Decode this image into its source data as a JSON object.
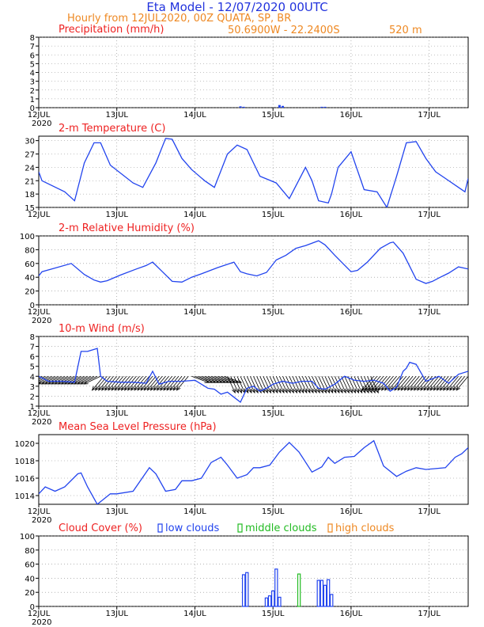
{
  "header": {
    "title": "Eta Model - 12/07/2020 00UTC",
    "subtitle": "Hourly from 12JUL2020, 00Z  QUATA, SP, BR",
    "location": "50.6900W - 22.2400S",
    "elevation": "520  m",
    "title_color": "#2233dd",
    "subtitle_color": "#ee8822"
  },
  "x_axis": {
    "day_labels": [
      "12JUL",
      "13JUL",
      "14JUL",
      "15JUL",
      "16JUL",
      "17JUL"
    ],
    "year_label": "2020",
    "range_hours": [
      0,
      132
    ]
  },
  "colors": {
    "series": "#2244ee",
    "panel_title": "#ee2222",
    "low_clouds": "#2244ee",
    "middle_clouds": "#22bb22",
    "high_clouds": "#ee8822",
    "wind_barbs": "#000000"
  },
  "chart_data": [
    {
      "id": "precip",
      "type": "bar",
      "title": "Precipitation (mm/h)",
      "ylim": [
        0,
        8
      ],
      "yticks": [
        0,
        1,
        2,
        3,
        4,
        5,
        6,
        7,
        8
      ],
      "x": [
        62,
        63,
        74,
        75,
        87,
        88
      ],
      "values": [
        0.15,
        0.1,
        0.3,
        0.2,
        0.1,
        0.1
      ]
    },
    {
      "id": "temp",
      "type": "line",
      "title": "2-m Temperature (C)",
      "ylim": [
        15,
        31
      ],
      "yticks": [
        15,
        18,
        21,
        24,
        27,
        30
      ],
      "x": [
        0,
        1,
        8,
        11,
        14,
        17,
        19,
        22,
        29,
        32,
        36,
        39,
        41,
        44,
        47,
        51,
        54,
        58,
        61,
        64,
        68,
        73,
        77,
        82,
        84,
        86,
        89,
        90,
        92,
        96,
        100,
        104,
        107,
        110,
        113,
        116,
        119,
        122,
        125,
        129,
        131,
        132
      ],
      "values": [
        23,
        21,
        18.5,
        16.5,
        25,
        29.5,
        29.5,
        24.5,
        20.5,
        19.5,
        25,
        30.5,
        30.3,
        26,
        23.5,
        21,
        19.5,
        27,
        29,
        28,
        22,
        20.5,
        17,
        24,
        21,
        16.5,
        16,
        18,
        24,
        27.5,
        19,
        18.5,
        15,
        22,
        29.5,
        29.8,
        26,
        23,
        21.5,
        19.5,
        18.5,
        21.5
      ]
    },
    {
      "id": "rh",
      "type": "line",
      "title": "2-m Relative Humidity (%)",
      "ylim": [
        0,
        100
      ],
      "yticks": [
        0,
        20,
        40,
        60,
        80,
        100
      ],
      "x": [
        0,
        1,
        4,
        10,
        14,
        17,
        19,
        21,
        25,
        30,
        33,
        35,
        38,
        41,
        44,
        47,
        50,
        55,
        60,
        62,
        64,
        67,
        70,
        73,
        76,
        79,
        82,
        86,
        88,
        91,
        96,
        98,
        101,
        105,
        108,
        109,
        112,
        114,
        116,
        119,
        121,
        123,
        126,
        129,
        132
      ],
      "values": [
        42,
        48,
        52,
        60,
        44,
        36,
        33,
        35,
        43,
        52,
        57,
        62,
        48,
        34,
        33,
        40,
        45,
        54,
        62,
        48,
        45,
        42,
        47,
        65,
        72,
        82,
        86,
        93,
        87,
        72,
        48,
        50,
        62,
        82,
        90,
        91,
        75,
        56,
        37,
        31,
        34,
        39,
        46,
        55,
        52
      ]
    },
    {
      "id": "wind",
      "type": "line",
      "title": "10-m Wind (m/s)",
      "ylim": [
        1,
        8
      ],
      "yticks": [
        1,
        2,
        3,
        4,
        5,
        6,
        7,
        8
      ],
      "x": [
        0,
        3,
        7,
        11,
        13,
        15,
        18,
        19,
        21,
        25,
        29,
        33,
        35,
        37,
        40,
        44,
        48,
        50,
        52,
        54,
        56,
        58,
        60,
        62,
        64,
        66,
        68,
        70,
        72,
        75,
        78,
        81,
        84,
        86,
        88,
        91,
        94,
        97,
        100,
        103,
        106,
        108,
        110,
        112,
        113,
        114,
        116,
        119,
        123,
        126,
        129,
        132
      ],
      "values": [
        4,
        3.5,
        3.5,
        3.4,
        6.5,
        6.5,
        6.8,
        4,
        3.5,
        3.4,
        3.4,
        3.3,
        4.5,
        3.2,
        3.5,
        3.5,
        3.6,
        3.2,
        2.8,
        2.7,
        2.2,
        2.4,
        1.9,
        1.4,
        2.8,
        3,
        2.5,
        2.8,
        3.2,
        3.5,
        3.3,
        3.5,
        3.5,
        2.8,
        2.7,
        3.2,
        4,
        3.6,
        3.5,
        3.6,
        3.3,
        2.5,
        2.9,
        4.5,
        4.8,
        5.4,
        5.2,
        3.5,
        4,
        3.3,
        4.2,
        4.5
      ],
      "barbs": {
        "count": 132,
        "sectors": [
          {
            "from": 0,
            "to": 20,
            "rotate": 65
          },
          {
            "from": 20,
            "to": 47,
            "rotate": 40
          },
          {
            "from": 47,
            "to": 58,
            "rotate": -70
          },
          {
            "from": 58,
            "to": 103,
            "rotate": -25
          },
          {
            "from": 103,
            "to": 132,
            "rotate": 40
          }
        ]
      }
    },
    {
      "id": "mslp",
      "type": "line",
      "title": "Mean Sea Level Pressure (hPa)",
      "ylim": [
        1013,
        1021
      ],
      "yticks": [
        1014,
        1016,
        1018,
        1020
      ],
      "x": [
        0,
        2,
        5,
        8,
        12,
        13,
        15,
        18,
        22,
        24,
        29,
        34,
        36,
        39,
        42,
        44,
        47,
        50,
        53,
        56,
        58,
        61,
        64,
        66,
        68,
        71,
        74,
        77,
        80,
        84,
        87,
        89,
        91,
        94,
        97,
        100,
        103,
        106,
        110,
        113,
        116,
        119,
        122,
        125,
        128,
        130,
        132
      ],
      "values": [
        1014.2,
        1015,
        1014.5,
        1015,
        1016.5,
        1016.6,
        1015,
        1013,
        1014.2,
        1014.2,
        1014.5,
        1017.2,
        1016.5,
        1014.5,
        1014.7,
        1015.7,
        1015.7,
        1016,
        1017.8,
        1018.4,
        1017.5,
        1016,
        1016.4,
        1017.2,
        1017.2,
        1017.5,
        1019,
        1020.1,
        1019,
        1016.7,
        1017.3,
        1018.4,
        1017.7,
        1018.4,
        1018.5,
        1019.5,
        1020.3,
        1017.4,
        1016.2,
        1016.8,
        1017.2,
        1017,
        1017.1,
        1017.2,
        1018.4,
        1018.8,
        1019.5
      ]
    },
    {
      "id": "cloud",
      "type": "bar",
      "title": "Cloud Cover (%)",
      "ylim": [
        0,
        100
      ],
      "yticks": [
        0,
        20,
        40,
        60,
        80,
        100
      ],
      "legend": [
        "low clouds",
        "middle clouds",
        "high clouds"
      ],
      "series": [
        {
          "name": "low clouds",
          "x": [
            63,
            64,
            70,
            71,
            72,
            73,
            74,
            86,
            87,
            88,
            89,
            90
          ],
          "values": [
            45,
            48,
            12,
            15,
            22,
            53,
            13,
            37,
            37,
            30,
            38,
            17
          ]
        },
        {
          "name": "middle clouds",
          "x": [
            80
          ],
          "values": [
            46
          ]
        },
        {
          "name": "high clouds",
          "x": [],
          "values": []
        }
      ]
    }
  ]
}
